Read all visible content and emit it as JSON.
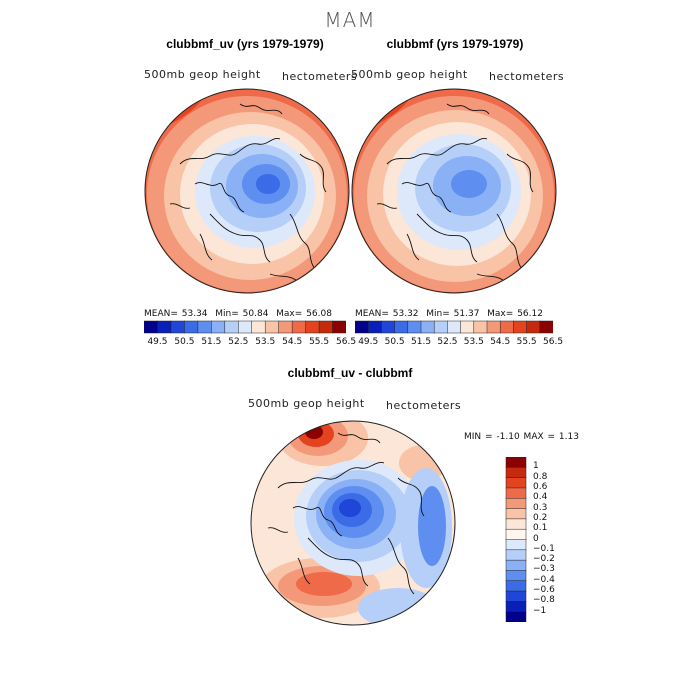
{
  "page": {
    "title": "MAM",
    "left_panel": {
      "title": "clubbmf_uv (yrs 1979-1979)",
      "field_label": "500mb geop height",
      "units_label": "hectometers",
      "stats": {
        "mean_label": "MEAN=",
        "mean": "53.34",
        "min_label": "Min=",
        "min": "50.84",
        "max_label": "Max=",
        "max": "56.08"
      }
    },
    "right_panel": {
      "title": "clubbmf (yrs 1979-1979)",
      "field_label": "500mb geop height",
      "units_label": "hectometers",
      "stats": {
        "mean_label": "MEAN=",
        "mean": "53.32",
        "min_label": "Min=",
        "min": "51.37",
        "max_label": "Max=",
        "max": "56.12"
      }
    },
    "diff_panel": {
      "title": "clubbmf_uv - clubbmf",
      "field_label": "500mb geop height",
      "units_label": "hectometers",
      "stats_text": "MIN =   -1.10  MAX =    1.13"
    }
  },
  "chart_data": [
    {
      "type": "heatmap",
      "projection": "polar-stereographic",
      "title": "clubbmf_uv (yrs 1979-1979)",
      "variable": "500mb geop height",
      "units": "hectometers",
      "mean": 53.34,
      "min": 50.84,
      "max": 56.08,
      "colorbar_ticks": [
        "49.5",
        "50.5",
        "51.5",
        "52.5",
        "53.5",
        "54.5",
        "55.5",
        "56.5"
      ],
      "colorbar_levels": [
        49.5,
        50,
        50.5,
        51,
        51.5,
        52,
        52.5,
        53,
        53.5,
        54,
        54.5,
        55,
        55.5,
        56,
        56.5
      ],
      "colorbar_colors": [
        "#00008b",
        "#0a1fb8",
        "#1f46d6",
        "#3b6be6",
        "#5d8ef0",
        "#8ab0f5",
        "#b6cff9",
        "#dde8fb",
        "#fbe6d8",
        "#f8c3a6",
        "#f4987a",
        "#ee6a48",
        "#e3431f",
        "#c52a0c",
        "#8b0000"
      ]
    },
    {
      "type": "heatmap",
      "projection": "polar-stereographic",
      "title": "clubbmf (yrs 1979-1979)",
      "variable": "500mb geop height",
      "units": "hectometers",
      "mean": 53.32,
      "min": 51.37,
      "max": 56.12,
      "colorbar_ticks": [
        "49.5",
        "50.5",
        "51.5",
        "52.5",
        "53.5",
        "54.5",
        "55.5",
        "56.5"
      ],
      "colorbar_levels": [
        49.5,
        50,
        50.5,
        51,
        51.5,
        52,
        52.5,
        53,
        53.5,
        54,
        54.5,
        55,
        55.5,
        56,
        56.5
      ],
      "colorbar_colors": [
        "#00008b",
        "#0a1fb8",
        "#1f46d6",
        "#3b6be6",
        "#5d8ef0",
        "#8ab0f5",
        "#b6cff9",
        "#dde8fb",
        "#fbe6d8",
        "#f8c3a6",
        "#f4987a",
        "#ee6a48",
        "#e3431f",
        "#c52a0c",
        "#8b0000"
      ]
    },
    {
      "type": "heatmap",
      "projection": "polar-stereographic",
      "title": "clubbmf_uv - clubbmf",
      "variable": "500mb geop height",
      "units": "hectometers",
      "min": -1.1,
      "max": 1.13,
      "colorbar_ticks": [
        "1",
        "0.8",
        "0.6",
        "0.4",
        "0.3",
        "0.2",
        "0.1",
        "0",
        "−0.1",
        "−0.2",
        "−0.3",
        "−0.4",
        "−0.6",
        "−0.8",
        "−1"
      ],
      "colorbar_colors": [
        "#8b0000",
        "#c52a0c",
        "#e3431f",
        "#ee6a48",
        "#f4987a",
        "#f8c3a6",
        "#fbe6d8",
        "#fff7ee",
        "#dde8fb",
        "#b6cff9",
        "#8ab0f5",
        "#5d8ef0",
        "#3b6be6",
        "#1f46d6",
        "#0a1fb8",
        "#00008b"
      ]
    }
  ]
}
